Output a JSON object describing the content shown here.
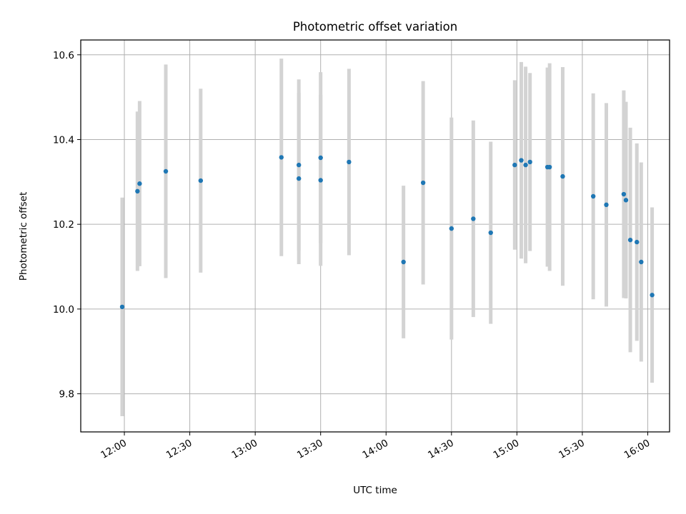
{
  "chart_data": {
    "type": "scatter",
    "title": "Photometric offset variation",
    "xlabel": "UTC time",
    "ylabel": "Photometric offset",
    "xlim": [
      "11:40",
      "16:10"
    ],
    "ylim": [
      9.71,
      10.635
    ],
    "x_ticks": [
      "12:00",
      "12:30",
      "13:00",
      "13:30",
      "14:00",
      "14:30",
      "15:00",
      "15:30",
      "16:00"
    ],
    "y_ticks": [
      9.8,
      10.0,
      10.2,
      10.4,
      10.6
    ],
    "y_tick_labels": [
      "9.8",
      "10.0",
      "10.2",
      "10.4",
      "10.6"
    ],
    "grid": true,
    "colors": {
      "points": "#1f77b4",
      "errorbars": "#d3d3d3",
      "grid": "#b0b0b0"
    },
    "points": [
      {
        "x": "11:59",
        "y": 10.005,
        "yerr": 0.258
      },
      {
        "x": "12:06",
        "y": 10.278,
        "yerr": 0.188
      },
      {
        "x": "12:07",
        "y": 10.296,
        "yerr": 0.195
      },
      {
        "x": "12:19",
        "y": 10.325,
        "yerr": 0.252
      },
      {
        "x": "12:35",
        "y": 10.303,
        "yerr": 0.217
      },
      {
        "x": "13:12",
        "y": 10.358,
        "yerr": 0.233
      },
      {
        "x": "13:20",
        "y": 10.308,
        "yerr": 0.202
      },
      {
        "x": "13:20",
        "y": 10.34,
        "yerr": 0.202
      },
      {
        "x": "13:30",
        "y": 10.304,
        "yerr": 0.202
      },
      {
        "x": "13:30",
        "y": 10.357,
        "yerr": 0.202
      },
      {
        "x": "13:43",
        "y": 10.347,
        "yerr": 0.22
      },
      {
        "x": "14:08",
        "y": 10.111,
        "yerr": 0.18
      },
      {
        "x": "14:17",
        "y": 10.298,
        "yerr": 0.24
      },
      {
        "x": "14:30",
        "y": 10.19,
        "yerr": 0.262
      },
      {
        "x": "14:40",
        "y": 10.213,
        "yerr": 0.232
      },
      {
        "x": "14:48",
        "y": 10.18,
        "yerr": 0.215
      },
      {
        "x": "14:59",
        "y": 10.34,
        "yerr": 0.2
      },
      {
        "x": "15:02",
        "y": 10.351,
        "yerr": 0.232
      },
      {
        "x": "15:04",
        "y": 10.34,
        "yerr": 0.232
      },
      {
        "x": "15:06",
        "y": 10.347,
        "yerr": 0.21
      },
      {
        "x": "15:14",
        "y": 10.335,
        "yerr": 0.235
      },
      {
        "x": "15:15",
        "y": 10.335,
        "yerr": 0.245
      },
      {
        "x": "15:21",
        "y": 10.313,
        "yerr": 0.258
      },
      {
        "x": "15:35",
        "y": 10.266,
        "yerr": 0.243
      },
      {
        "x": "15:41",
        "y": 10.246,
        "yerr": 0.24
      },
      {
        "x": "15:49",
        "y": 10.271,
        "yerr": 0.245
      },
      {
        "x": "15:50",
        "y": 10.257,
        "yerr": 0.232
      },
      {
        "x": "15:52",
        "y": 10.163,
        "yerr": 0.265
      },
      {
        "x": "15:55",
        "y": 10.158,
        "yerr": 0.233
      },
      {
        "x": "15:57",
        "y": 10.111,
        "yerr": 0.235
      },
      {
        "x": "16:02",
        "y": 10.033,
        "yerr": 0.207
      }
    ]
  }
}
